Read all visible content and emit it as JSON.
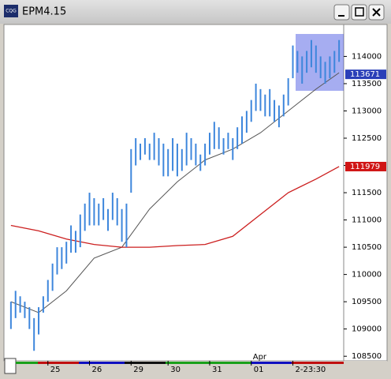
{
  "window": {
    "title": "EPM4.15",
    "icon_text": "CQG"
  },
  "chart_data": {
    "type": "ohlc",
    "xlim": [
      -1,
      72
    ],
    "xticks": [
      {
        "value": 8,
        "label": "25"
      },
      {
        "value": 17,
        "label": "26"
      },
      {
        "value": 26,
        "label": "29"
      },
      {
        "value": 34,
        "label": "30"
      },
      {
        "value": 43,
        "label": "31"
      },
      {
        "value": 52,
        "label": "01"
      },
      {
        "value": 61,
        "label": "2-23:30"
      }
    ],
    "annotation": {
      "value": 52,
      "label": "Apr"
    },
    "ylim": [
      108300,
      114600
    ],
    "yticks": [
      108500,
      109000,
      109500,
      110000,
      110500,
      111000,
      111500,
      112000,
      112500,
      113000,
      113500,
      114000
    ],
    "grid": false,
    "bar_color": "#3d86dc",
    "highs": [
      109500,
      109700,
      109600,
      109500,
      109400,
      109200,
      109400,
      109600,
      109900,
      110200,
      110500,
      110500,
      110600,
      110900,
      110800,
      111100,
      111300,
      111500,
      111400,
      111300,
      111400,
      111200,
      111500,
      111400,
      111200,
      111300,
      112300,
      112500,
      112400,
      112500,
      112400,
      112600,
      112500,
      112400,
      112300,
      112500,
      112400,
      112300,
      112600,
      112500,
      112400,
      112200,
      112400,
      112600,
      112800,
      112700,
      112500,
      112600,
      112500,
      112700,
      112900,
      113000,
      113200,
      113500,
      113400,
      113300,
      113400,
      113200,
      113100,
      113300,
      113600,
      114200,
      114100,
      114000,
      114100,
      114300,
      114200,
      114000,
      113900,
      114000,
      114100,
      114300
    ],
    "lows": [
      109000,
      109200,
      109300,
      109200,
      109000,
      108600,
      108900,
      109300,
      109500,
      109700,
      110000,
      110100,
      110200,
      110400,
      110400,
      110500,
      110800,
      110900,
      110900,
      110900,
      111000,
      110800,
      111000,
      110900,
      110600,
      110500,
      111500,
      112000,
      112100,
      112200,
      112100,
      112100,
      112000,
      111800,
      111800,
      111900,
      111800,
      111900,
      112000,
      112100,
      112000,
      111900,
      112000,
      112200,
      112300,
      112300,
      112200,
      112300,
      112100,
      112300,
      112400,
      112600,
      112800,
      113000,
      113000,
      112900,
      112900,
      112800,
      112700,
      112900,
      113100,
      113600,
      113700,
      113500,
      113700,
      113800,
      113700,
      113600,
      113500,
      113600,
      113700,
      113900
    ],
    "lines": [
      {
        "color": "#555555",
        "x": [
          0,
          6,
          12,
          18,
          24,
          30,
          36,
          42,
          48,
          54,
          60,
          66,
          71
        ],
        "values": [
          109500,
          109300,
          109700,
          110300,
          110500,
          111200,
          111700,
          112100,
          112300,
          112600,
          113000,
          113400,
          113700
        ]
      },
      {
        "color": "#cc1f1f",
        "x": [
          0,
          6,
          12,
          18,
          24,
          30,
          36,
          42,
          48,
          54,
          60,
          66,
          71
        ],
        "values": [
          110900,
          110800,
          110650,
          110550,
          110500,
          110500,
          110530,
          110550,
          110700,
          111100,
          111500,
          111750,
          111979
        ]
      }
    ],
    "price_tags": [
      {
        "value": 113671,
        "color": "#2a3fb8"
      },
      {
        "value": 111979,
        "color": "#d01515"
      }
    ]
  }
}
